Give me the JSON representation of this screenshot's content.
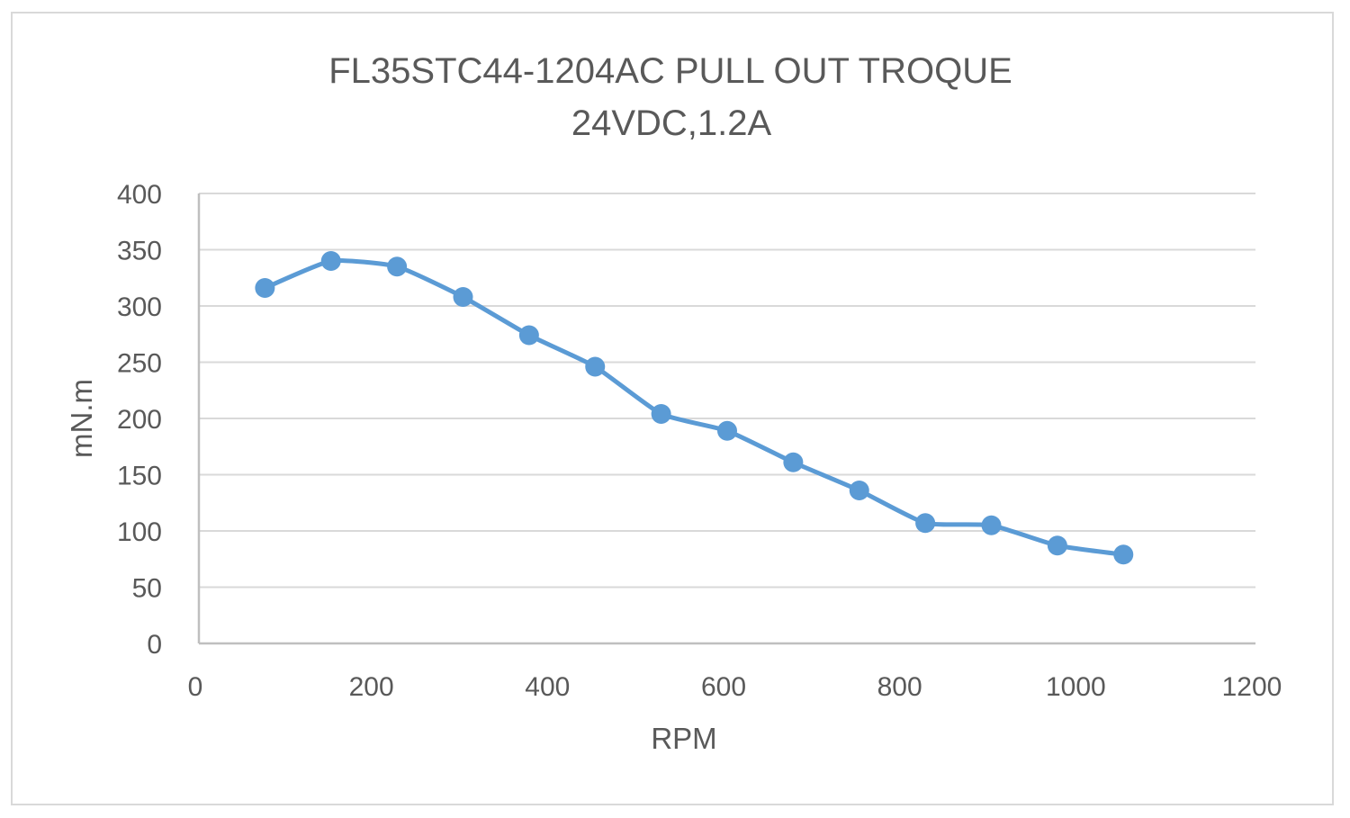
{
  "chart_data": {
    "type": "line",
    "title": "FL35STC44-1204AC PULL OUT TROQUE",
    "subtitle": "24VDC,1.2A",
    "xlabel": "RPM",
    "ylabel": "mN.m",
    "xlim": [
      0,
      1200
    ],
    "ylim": [
      0,
      400
    ],
    "x_ticks": [
      0,
      200,
      400,
      600,
      800,
      1000,
      1200
    ],
    "y_ticks": [
      0,
      50,
      100,
      150,
      200,
      250,
      300,
      350,
      400
    ],
    "grid": "horizontal",
    "legend": "none",
    "smooth": true,
    "series": [
      {
        "color": "#5b9bd5",
        "marker": "circle",
        "x": [
          75,
          150,
          225,
          300,
          375,
          450,
          525,
          600,
          675,
          750,
          825,
          900,
          975,
          1050
        ],
        "y": [
          316,
          340,
          335,
          308,
          274,
          246,
          204,
          189,
          161,
          136,
          107,
          105,
          87,
          79
        ]
      }
    ]
  },
  "colors": {
    "grid": "#d9d9d9",
    "axis": "#bfbfbf",
    "text": "#595959",
    "series": "#5b9bd5"
  }
}
